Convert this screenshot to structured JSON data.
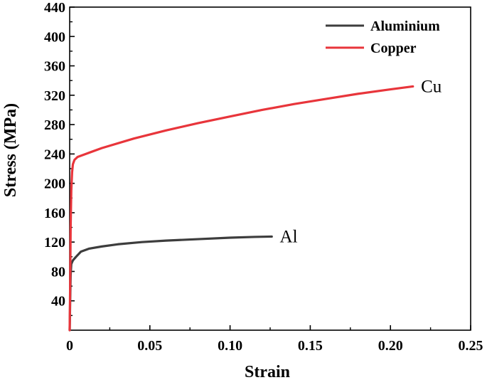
{
  "chart_data": {
    "type": "line",
    "xlabel": "Strain",
    "ylabel": "Stress (MPa)",
    "xlim": [
      0,
      0.25
    ],
    "ylim": [
      0,
      440
    ],
    "x_ticks": [
      "0",
      "0.05",
      "0.10",
      "0.15",
      "0.20",
      "0.25"
    ],
    "x_tick_values": [
      0,
      0.05,
      0.1,
      0.15,
      0.2,
      0.25
    ],
    "y_ticks": [
      "40",
      "80",
      "120",
      "160",
      "200",
      "240",
      "280",
      "320",
      "360",
      "400",
      "440"
    ],
    "y_tick_values": [
      40,
      80,
      120,
      160,
      200,
      240,
      280,
      320,
      360,
      400,
      440
    ],
    "legend_position": "top-right",
    "series": [
      {
        "name": "Aluminium",
        "color": "#3d3d3d",
        "x": [
          0,
          0.0003,
          0.0006,
          0.001,
          0.002,
          0.004,
          0.007,
          0.012,
          0.02,
          0.03,
          0.045,
          0.06,
          0.08,
          0.1,
          0.115,
          0.126
        ],
        "y": [
          0,
          40,
          75,
          90,
          95,
          100,
          107,
          111,
          114,
          117,
          120,
          122,
          124,
          126,
          127,
          127.5
        ]
      },
      {
        "name": "Copper",
        "color": "#e8353b",
        "x": [
          0,
          0.0003,
          0.0006,
          0.001,
          0.0015,
          0.002,
          0.003,
          0.005,
          0.01,
          0.02,
          0.04,
          0.06,
          0.08,
          0.1,
          0.12,
          0.14,
          0.16,
          0.18,
          0.2,
          0.214
        ],
        "y": [
          0,
          60,
          140,
          190,
          215,
          226,
          232,
          236,
          240,
          248,
          261,
          272,
          282,
          291,
          300,
          308,
          315,
          322,
          328,
          332
        ]
      }
    ],
    "annotations": [
      {
        "text": "Cu",
        "x": 0.219,
        "y": 332
      },
      {
        "text": "Al",
        "x": 0.131,
        "y": 127.5
      }
    ]
  }
}
